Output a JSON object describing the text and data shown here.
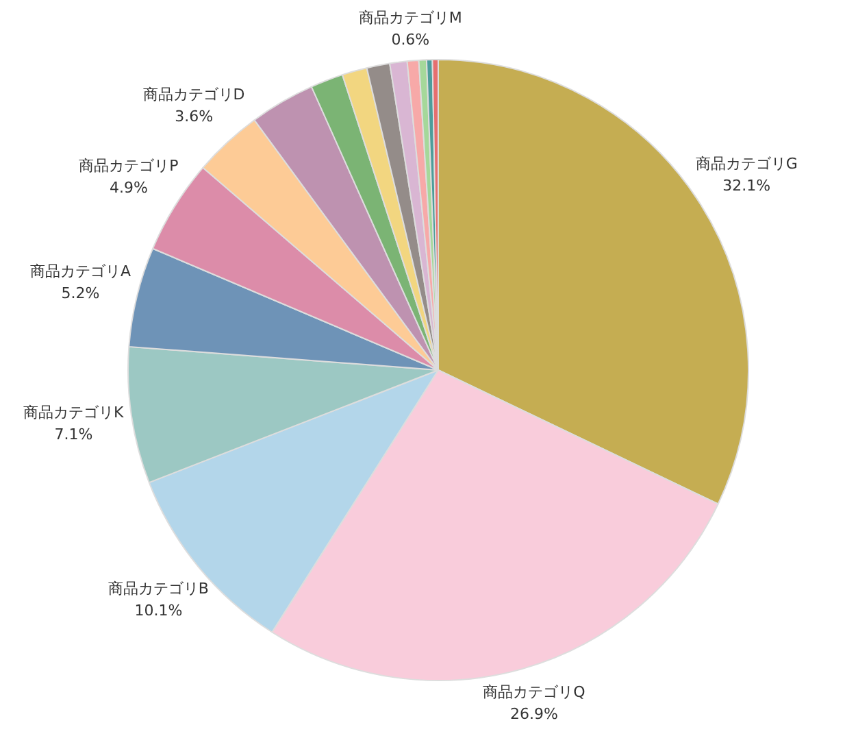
{
  "chart_data": {
    "type": "pie",
    "categories": [
      "商品カテゴリG",
      "商品カテゴリQ",
      "商品カテゴリB",
      "商品カテゴリK",
      "商品カテゴリA",
      "商品カテゴリP",
      "商品カテゴリD",
      null,
      null,
      null,
      null,
      null,
      "商品カテゴリM",
      null,
      null,
      null
    ],
    "values": [
      32.1,
      26.9,
      10.1,
      7.1,
      5.2,
      4.9,
      3.6,
      3.4,
      1.7,
      1.3,
      1.2,
      0.9,
      0.6,
      0.4,
      0.3,
      0.3
    ],
    "value_labels": [
      "32.1%",
      "26.9%",
      "10.1%",
      "7.1%",
      "5.2%",
      "4.9%",
      "3.6%",
      null,
      null,
      null,
      null,
      null,
      "0.6%",
      null,
      null,
      null
    ],
    "colors": [
      "#c5ad52",
      "#f9ccdb",
      "#b3d6ea",
      "#9cc8c3",
      "#6e93b7",
      "#dc8ca9",
      "#fdcb96",
      "#be92b0",
      "#7bb474",
      "#f2d680",
      "#948c89",
      "#d9b6d3",
      "#f7a9a8",
      "#a5d89a",
      "#4d9d9b",
      "#e66f6f"
    ],
    "legend": false
  }
}
